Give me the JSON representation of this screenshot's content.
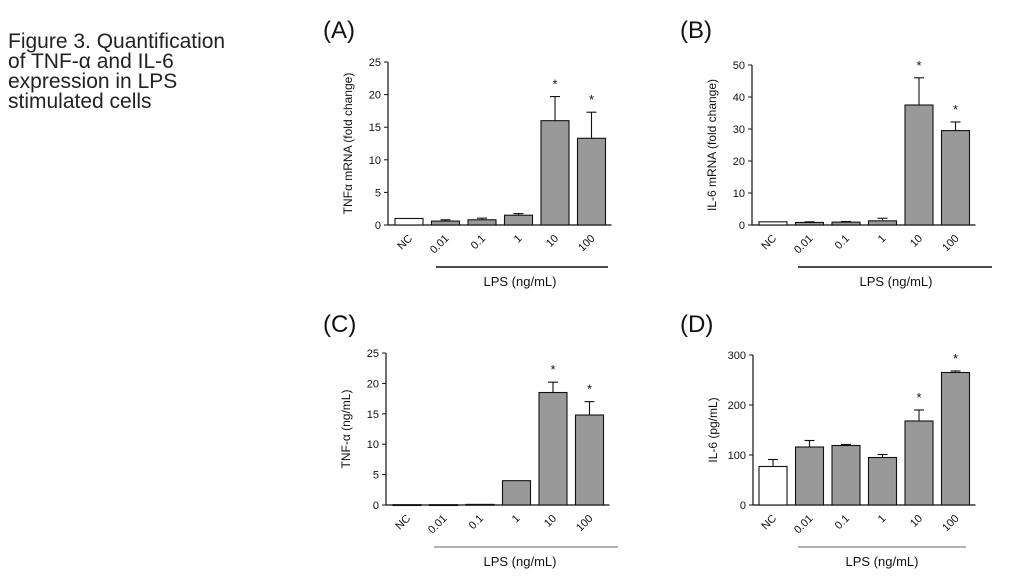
{
  "caption": {
    "lines": [
      "Figure 3. Quantification",
      "of TNF-α and IL-6",
      "expression in LPS",
      "stimulated cells"
    ]
  },
  "colors": {
    "bar": "#999999",
    "control": "#ffffff",
    "stroke": "#111111",
    "group_line_top": "#111111",
    "group_line_bottom": "#999999"
  },
  "chart_data": [
    {
      "type": "bar",
      "panel": "(A)",
      "categories": [
        "NC",
        "0.01",
        "0.1",
        "1",
        "10",
        "100"
      ],
      "values": [
        1.0,
        0.6,
        0.8,
        1.5,
        16.0,
        13.3
      ],
      "errors": [
        0,
        0.2,
        0.25,
        0.25,
        3.7,
        4.0
      ],
      "significant": [
        "",
        "",
        "",
        "",
        "*",
        "*"
      ],
      "ylabel": "TNFα mRNA (fold change)",
      "xlabel": "LPS (ng/mL)",
      "ylim": [
        0,
        25
      ],
      "yticks": [
        0,
        5,
        10,
        15,
        20,
        25
      ]
    },
    {
      "type": "bar",
      "panel": "(B)",
      "categories": [
        "NC",
        "0.01",
        "0.1",
        "1",
        "10",
        "100"
      ],
      "values": [
        1.0,
        0.8,
        0.9,
        1.3,
        37.5,
        29.5
      ],
      "errors": [
        0,
        0.2,
        0.2,
        0.8,
        8.5,
        2.7
      ],
      "significant": [
        "",
        "",
        "",
        "",
        "*",
        "*"
      ],
      "ylabel": "IL-6 mRNA (fold change)",
      "xlabel": "LPS (ng/mL)",
      "ylim": [
        0,
        50
      ],
      "yticks": [
        0,
        10,
        20,
        30,
        40,
        50
      ]
    },
    {
      "type": "bar",
      "panel": "(C)",
      "categories": [
        "NC",
        "0.01",
        "0.1",
        "1",
        "10",
        "100"
      ],
      "values": [
        0.05,
        0.05,
        0.1,
        4.0,
        18.5,
        14.8
      ],
      "errors": [
        0,
        0,
        0,
        0,
        1.7,
        2.2
      ],
      "significant": [
        "",
        "",
        "",
        "",
        "*",
        "*"
      ],
      "ylabel": "TNF-α (ng/mL)",
      "xlabel": "LPS (ng/mL)",
      "ylim": [
        0,
        25
      ],
      "yticks": [
        0,
        5,
        10,
        15,
        20,
        25
      ]
    },
    {
      "type": "bar",
      "panel": "(D)",
      "categories": [
        "NC",
        "0.01",
        "0.1",
        "1",
        "10",
        "100"
      ],
      "values": [
        77,
        116,
        119,
        95,
        168,
        265
      ],
      "errors": [
        14,
        13,
        2,
        6,
        22,
        3
      ],
      "significant": [
        "",
        "",
        "",
        "",
        "*",
        "*"
      ],
      "ylabel": "IL-6 (pg/mL)",
      "xlabel": "LPS (ng/mL)",
      "ylim": [
        0,
        300
      ],
      "yticks": [
        0,
        100,
        200,
        300
      ]
    }
  ]
}
